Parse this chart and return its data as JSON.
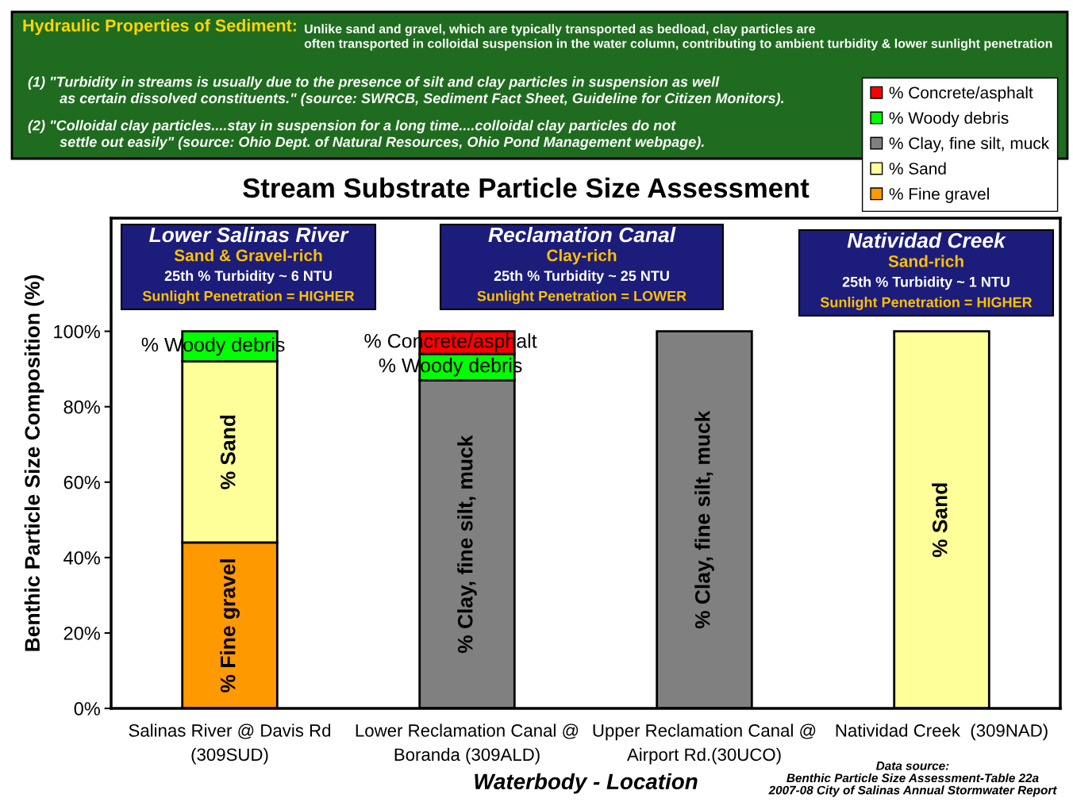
{
  "chart_data": {
    "type": "bar",
    "stacked": true,
    "title": "Stream Substrate Particle Size Assessment",
    "xlabel": "Waterbody - Location",
    "ylabel": "Benthic Particle Size Composition (%)",
    "categories": [
      "Salinas River @ Davis Rd\n(309SUD)",
      "Lower Reclamation Canal @\nBoranda (309ALD)",
      "Upper Reclamation Canal @\nAirport Rd.(30UCO)",
      "Natividad Creek  (309NAD)"
    ],
    "series": [
      {
        "name": "% Fine gravel",
        "color": "#ff9900",
        "values": [
          44,
          0,
          0,
          0
        ],
        "value_labels": [
          "% Fine gravel",
          null,
          null,
          null
        ]
      },
      {
        "name": "% Sand",
        "color": "#ffff99",
        "values": [
          48,
          0,
          0,
          100
        ],
        "value_labels": [
          "% Sand",
          null,
          null,
          "% Sand"
        ]
      },
      {
        "name": "% Clay, fine silt, muck",
        "color": "#808080",
        "values": [
          0,
          87,
          100,
          0
        ],
        "value_labels": [
          null,
          "% Clay, fine silt, muck",
          "% Clay, fine silt, muck",
          null
        ]
      },
      {
        "name": "% Woody debris",
        "color": "#00ff00",
        "values": [
          8,
          7,
          0,
          0
        ],
        "value_labels": [
          "% Woody debris",
          "% Woody debris",
          null,
          null
        ]
      },
      {
        "name": "% Concrete/asphalt",
        "color": "#ff0000",
        "values": [
          0,
          6,
          0,
          0
        ],
        "value_labels": [
          null,
          "% Concrete/asphalt",
          null,
          null
        ]
      }
    ],
    "ylim": [
      0,
      130
    ],
    "yticks": [
      {
        "value": 0,
        "label": "0%"
      },
      {
        "value": 20,
        "label": "20%"
      },
      {
        "value": 40,
        "label": "40%"
      },
      {
        "value": 60,
        "label": "60%"
      },
      {
        "value": 80,
        "label": "80%"
      },
      {
        "value": 100,
        "label": "100%"
      }
    ],
    "grid": false,
    "legend": "top right",
    "annotations": [
      "Hydraulic Properties of Sediment:",
      "Unlike sand and gravel, which are typically transported as bedload, clay particles are\noften transported in colloidal suspension in the water column, contributing to ambient turbidity & lower sunlight penetration",
      "(1) \"Turbidity in streams is usually due to the presence of silt and clay particles in suspension as well\n        as certain dissolved constituents.\" (source: SWRCB, Sediment Fact Sheet, Guideline for Citizen Monitors).",
      "(2) \"Colloidal clay particles....stay in suspension for a long time....colloidal clay particles do not\n        settle out easily\" (source: Ohio Dept. of Natural Resources, Ohio Pond Management webpage).",
      "Lower Salinas River\nSand & Gravel-rich\n25th % Turbidity ~ 6 NTU\nSunlight Penetration = HIGHER",
      "Reclamation Canal\nClay-rich\n25th % Turbidity ~ 25 NTU\nSunlight Penetration = LOWER",
      "Natividad Creek\nSand-rich\n25th % Turbidity ~ 1 NTU\nSunlight Penetration = HIGHER",
      "Data source:\nBenthic Particle Size Assessment-Table 22a\n2007-08 City of Salinas Annual Stormwater Report"
    ]
  }
}
